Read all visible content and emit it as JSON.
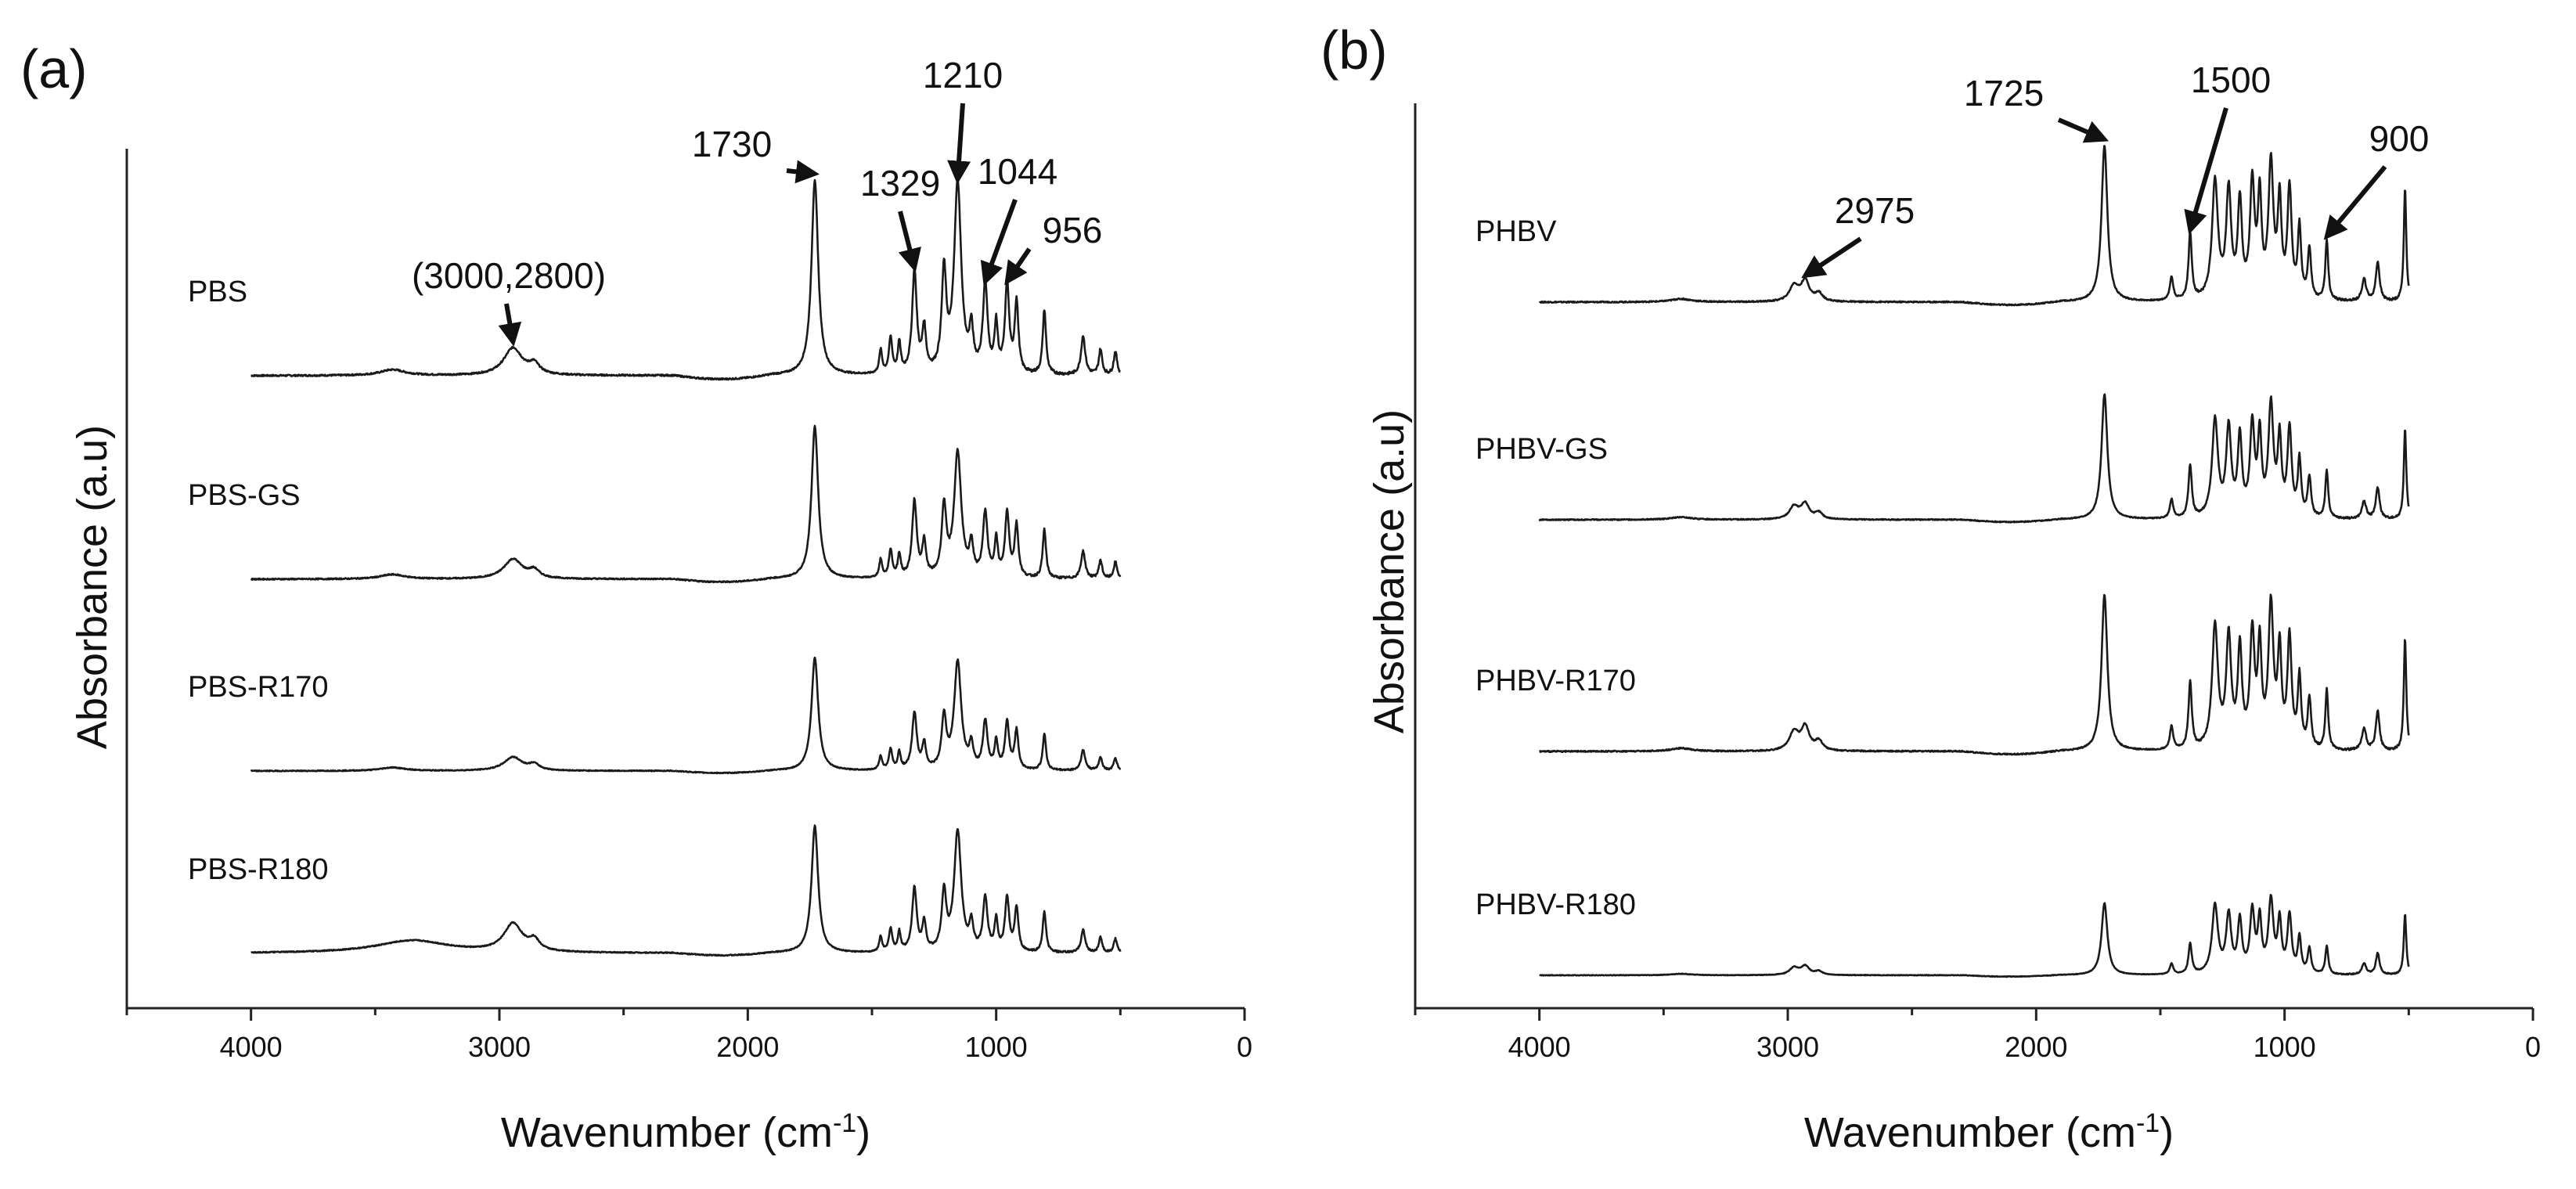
{
  "chart_data": [
    {
      "type": "line",
      "panel_label": "(a)",
      "title": "",
      "xlabel": "Wavenumber (cm",
      "xlabel_sup": "-1",
      "xlabel_end": ")",
      "ylabel": "Absorbance (a.u)",
      "xlim": [
        4500,
        0
      ],
      "xticks": [
        4000,
        3000,
        2000,
        1000,
        0
      ],
      "xtick_labels": [
        "4000",
        "3000",
        "2000",
        "1000",
        "0"
      ],
      "yticks": [],
      "grid": false,
      "x_range": [
        4000,
        500
      ],
      "series": [
        {
          "name": "PBS",
          "label": "PBS",
          "offset": 3,
          "scale": 1.0,
          "peaks": [
            [
              3430,
              0.03,
              60
            ],
            [
              2945,
              0.14,
              45
            ],
            [
              2860,
              0.05,
              25
            ],
            [
              1730,
              1.0,
              16
            ],
            [
              1465,
              0.12,
              7
            ],
            [
              1425,
              0.18,
              8
            ],
            [
              1390,
              0.15,
              7
            ],
            [
              1329,
              0.52,
              11
            ],
            [
              1290,
              0.22,
              9
            ],
            [
              1210,
              0.5,
              11
            ],
            [
              1155,
              0.97,
              17
            ],
            [
              1100,
              0.2,
              9
            ],
            [
              1044,
              0.45,
              11
            ],
            [
              1000,
              0.24,
              8
            ],
            [
              956,
              0.45,
              10
            ],
            [
              918,
              0.36,
              9
            ],
            [
              806,
              0.33,
              8
            ],
            [
              650,
              0.2,
              10
            ],
            [
              580,
              0.13,
              8
            ],
            [
              520,
              0.12,
              8
            ]
          ]
        },
        {
          "name": "PBS-GS",
          "label": "PBS-GS",
          "offset": 2,
          "scale": 0.78,
          "peaks": [
            [
              3430,
              0.03,
              60
            ],
            [
              2945,
              0.13,
              45
            ],
            [
              2860,
              0.05,
              25
            ],
            [
              1730,
              1.0,
              16
            ],
            [
              1465,
              0.12,
              7
            ],
            [
              1425,
              0.18,
              8
            ],
            [
              1390,
              0.15,
              7
            ],
            [
              1329,
              0.5,
              11
            ],
            [
              1290,
              0.22,
              9
            ],
            [
              1210,
              0.45,
              11
            ],
            [
              1155,
              0.82,
              17
            ],
            [
              1100,
              0.2,
              9
            ],
            [
              1044,
              0.42,
              11
            ],
            [
              1000,
              0.24,
              8
            ],
            [
              956,
              0.42,
              10
            ],
            [
              918,
              0.34,
              9
            ],
            [
              806,
              0.32,
              8
            ],
            [
              650,
              0.18,
              10
            ],
            [
              580,
              0.12,
              8
            ],
            [
              520,
              0.11,
              8
            ]
          ]
        },
        {
          "name": "PBS-R170",
          "label": "PBS-R170",
          "offset": 1,
          "scale": 0.58,
          "peaks": [
            [
              3430,
              0.03,
              60
            ],
            [
              2945,
              0.12,
              45
            ],
            [
              2860,
              0.05,
              25
            ],
            [
              1730,
              1.0,
              16
            ],
            [
              1465,
              0.12,
              7
            ],
            [
              1425,
              0.18,
              8
            ],
            [
              1390,
              0.15,
              7
            ],
            [
              1329,
              0.5,
              11
            ],
            [
              1290,
              0.22,
              9
            ],
            [
              1210,
              0.45,
              11
            ],
            [
              1155,
              0.95,
              17
            ],
            [
              1100,
              0.2,
              9
            ],
            [
              1044,
              0.42,
              11
            ],
            [
              1000,
              0.24,
              8
            ],
            [
              956,
              0.42,
              10
            ],
            [
              918,
              0.34,
              9
            ],
            [
              806,
              0.32,
              8
            ],
            [
              650,
              0.18,
              10
            ],
            [
              580,
              0.12,
              8
            ],
            [
              520,
              0.11,
              8
            ]
          ]
        },
        {
          "name": "PBS-R180",
          "label": "PBS-R180",
          "offset": 0,
          "scale": 0.65,
          "peaks": [
            [
              3350,
              0.1,
              180
            ],
            [
              2945,
              0.22,
              45
            ],
            [
              2860,
              0.08,
              25
            ],
            [
              1730,
              1.0,
              16
            ],
            [
              1465,
              0.12,
              7
            ],
            [
              1425,
              0.18,
              8
            ],
            [
              1390,
              0.15,
              7
            ],
            [
              1329,
              0.5,
              11
            ],
            [
              1290,
              0.22,
              9
            ],
            [
              1210,
              0.45,
              11
            ],
            [
              1155,
              0.95,
              17
            ],
            [
              1100,
              0.2,
              9
            ],
            [
              1044,
              0.42,
              11
            ],
            [
              1000,
              0.24,
              8
            ],
            [
              956,
              0.42,
              10
            ],
            [
              918,
              0.34,
              9
            ],
            [
              806,
              0.32,
              8
            ],
            [
              650,
              0.18,
              10
            ],
            [
              580,
              0.12,
              8
            ],
            [
              520,
              0.11,
              8
            ]
          ]
        }
      ],
      "annotations": [
        {
          "text": "(3000,2800)",
          "x": 2945,
          "series": "PBS"
        },
        {
          "text": "1730",
          "x": 1730,
          "series": "PBS"
        },
        {
          "text": "1329",
          "x": 1329,
          "series": "PBS"
        },
        {
          "text": "1210",
          "x": 1155,
          "series": "PBS"
        },
        {
          "text": "1044",
          "x": 1044,
          "series": "PBS"
        },
        {
          "text": "956",
          "x": 956,
          "series": "PBS"
        }
      ]
    },
    {
      "type": "line",
      "panel_label": "(b)",
      "title": "",
      "xlabel": "Wavenumber (cm",
      "xlabel_sup": "-1",
      "xlabel_end": ")",
      "ylabel": "Absorbance (a.u)",
      "xlim": [
        4500,
        0
      ],
      "xticks": [
        4000,
        3000,
        2000,
        1000,
        0
      ],
      "xtick_labels": [
        "4000",
        "3000",
        "2000",
        "1000",
        "0"
      ],
      "yticks": [],
      "grid": false,
      "x_range": [
        4000,
        500
      ],
      "series": [
        {
          "name": "PHBV",
          "label": "PHBV",
          "offset": 3,
          "scale": 1.0,
          "peaks": [
            [
              3430,
              0.02,
              50
            ],
            [
              2975,
              0.1,
              22
            ],
            [
              2930,
              0.13,
              20
            ],
            [
              2875,
              0.05,
              18
            ],
            [
              1725,
              1.0,
              14
            ],
            [
              1455,
              0.15,
              8
            ],
            [
              1380,
              0.42,
              8
            ],
            [
              1280,
              0.75,
              14
            ],
            [
              1225,
              0.68,
              12
            ],
            [
              1180,
              0.6,
              10
            ],
            [
              1130,
              0.72,
              11
            ],
            [
              1100,
              0.62,
              9
            ],
            [
              1055,
              0.85,
              12
            ],
            [
              1020,
              0.6,
              9
            ],
            [
              980,
              0.7,
              10
            ],
            [
              940,
              0.45,
              8
            ],
            [
              900,
              0.32,
              8
            ],
            [
              830,
              0.38,
              7
            ],
            [
              680,
              0.14,
              10
            ],
            [
              625,
              0.25,
              9
            ],
            [
              515,
              0.72,
              6
            ]
          ]
        },
        {
          "name": "PHBV-GS",
          "label": "PHBV-GS",
          "offset": 2,
          "scale": 0.8,
          "peaks": [
            [
              3430,
              0.02,
              50
            ],
            [
              2975,
              0.1,
              22
            ],
            [
              2930,
              0.12,
              20
            ],
            [
              2875,
              0.05,
              18
            ],
            [
              1725,
              1.0,
              14
            ],
            [
              1455,
              0.15,
              8
            ],
            [
              1380,
              0.42,
              8
            ],
            [
              1280,
              0.78,
              14
            ],
            [
              1225,
              0.7,
              12
            ],
            [
              1180,
              0.62,
              10
            ],
            [
              1130,
              0.72,
              11
            ],
            [
              1100,
              0.62,
              9
            ],
            [
              1055,
              0.88,
              12
            ],
            [
              1020,
              0.6,
              9
            ],
            [
              980,
              0.7,
              10
            ],
            [
              940,
              0.45,
              8
            ],
            [
              900,
              0.32,
              8
            ],
            [
              830,
              0.38,
              7
            ],
            [
              680,
              0.14,
              10
            ],
            [
              625,
              0.25,
              9
            ],
            [
              515,
              0.72,
              6
            ]
          ]
        },
        {
          "name": "PHBV-R170",
          "label": "PHBV-R170",
          "offset": 1,
          "scale": 1.0,
          "peaks": [
            [
              3430,
              0.02,
              50
            ],
            [
              2975,
              0.12,
              22
            ],
            [
              2930,
              0.15,
              20
            ],
            [
              2875,
              0.06,
              18
            ],
            [
              1725,
              1.0,
              14
            ],
            [
              1455,
              0.15,
              8
            ],
            [
              1380,
              0.42,
              8
            ],
            [
              1280,
              0.78,
              14
            ],
            [
              1225,
              0.7,
              12
            ],
            [
              1180,
              0.62,
              10
            ],
            [
              1130,
              0.72,
              11
            ],
            [
              1100,
              0.62,
              9
            ],
            [
              1055,
              0.9,
              12
            ],
            [
              1020,
              0.6,
              9
            ],
            [
              980,
              0.7,
              10
            ],
            [
              940,
              0.45,
              8
            ],
            [
              900,
              0.32,
              8
            ],
            [
              830,
              0.38,
              7
            ],
            [
              680,
              0.14,
              10
            ],
            [
              625,
              0.25,
              9
            ],
            [
              515,
              0.72,
              6
            ]
          ]
        },
        {
          "name": "PHBV-R180",
          "label": "PHBV-R180",
          "offset": 0,
          "scale": 0.46,
          "peaks": [
            [
              3430,
              0.02,
              50
            ],
            [
              2975,
              0.1,
              22
            ],
            [
              2930,
              0.12,
              20
            ],
            [
              2875,
              0.05,
              18
            ],
            [
              1725,
              1.0,
              14
            ],
            [
              1455,
              0.15,
              8
            ],
            [
              1380,
              0.42,
              8
            ],
            [
              1280,
              0.95,
              14
            ],
            [
              1225,
              0.8,
              12
            ],
            [
              1180,
              0.72,
              10
            ],
            [
              1130,
              0.85,
              11
            ],
            [
              1100,
              0.72,
              9
            ],
            [
              1055,
              1.0,
              12
            ],
            [
              1020,
              0.7,
              9
            ],
            [
              980,
              0.8,
              10
            ],
            [
              940,
              0.5,
              8
            ],
            [
              900,
              0.35,
              8
            ],
            [
              830,
              0.4,
              7
            ],
            [
              680,
              0.16,
              10
            ],
            [
              625,
              0.3,
              9
            ],
            [
              515,
              0.85,
              6
            ]
          ]
        }
      ],
      "annotations": [
        {
          "text": "2975",
          "x": 2930,
          "series": "PHBV"
        },
        {
          "text": "1725",
          "x": 1725,
          "series": "PHBV"
        },
        {
          "text": "1500",
          "x": 1380,
          "series": "PHBV"
        },
        {
          "text": "900",
          "x": 830,
          "series": "PHBV"
        }
      ]
    }
  ]
}
